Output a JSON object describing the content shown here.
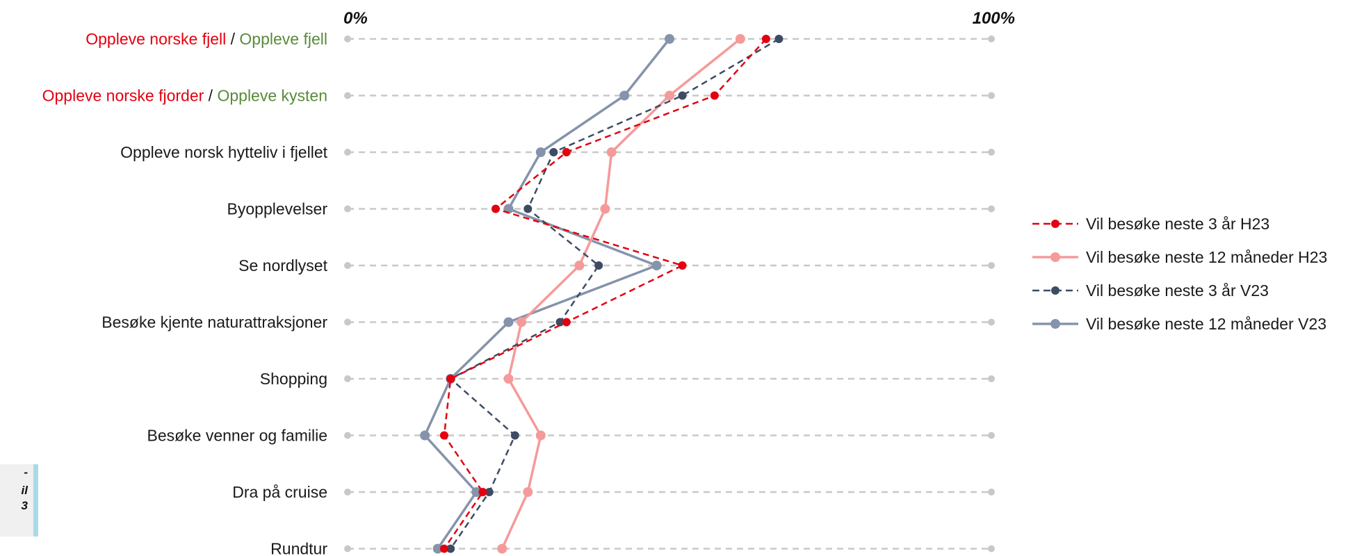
{
  "side_note": {
    "lines": [
      "-",
      "il",
      "3"
    ]
  },
  "chart_data": {
    "type": "line",
    "orientation": "horizontal",
    "x_range": [
      0,
      100
    ],
    "x_tick_labels": [
      "0%",
      "100%"
    ],
    "grid": "dashed-horizontal",
    "legend_position": "right",
    "categories": [
      [
        {
          "text": "Oppleve norske fjell",
          "color": "#e3000f"
        },
        {
          "text": " / ",
          "color": "#1a1a1a"
        },
        {
          "text": "Oppleve fjell",
          "color": "#5a8a3a"
        }
      ],
      [
        {
          "text": "Oppleve norske fjorder",
          "color": "#e3000f"
        },
        {
          "text": " / ",
          "color": "#1a1a1a"
        },
        {
          "text": "Oppleve kysten",
          "color": "#5a8a3a"
        }
      ],
      [
        {
          "text": "Oppleve norsk hytteliv i fjellet",
          "color": "#1a1a1a"
        }
      ],
      [
        {
          "text": "Byopplevelser",
          "color": "#1a1a1a"
        }
      ],
      [
        {
          "text": "Se nordlyset",
          "color": "#1a1a1a"
        }
      ],
      [
        {
          "text": "Besøke kjente naturattraksjoner",
          "color": "#1a1a1a"
        }
      ],
      [
        {
          "text": "Shopping",
          "color": "#1a1a1a"
        }
      ],
      [
        {
          "text": "Besøke venner og familie",
          "color": "#1a1a1a"
        }
      ],
      [
        {
          "text": "Dra på cruise",
          "color": "#1a1a1a"
        }
      ],
      [
        {
          "text": "Rundtur",
          "color": "#1a1a1a"
        }
      ]
    ],
    "series": [
      {
        "name": "Vil besøke neste 12 måneder V23",
        "color": "#8593ab",
        "style": "solid",
        "values": [
          50,
          43,
          30,
          25,
          48,
          25,
          16,
          12,
          20,
          14
        ]
      },
      {
        "name": "Vil besøke neste 12 måneder H23",
        "color": "#f59a9a",
        "style": "solid",
        "values": [
          61,
          50,
          41,
          40,
          36,
          27,
          25,
          30,
          28,
          24
        ]
      },
      {
        "name": "Vil besøke neste 3 år V23",
        "color": "#3d4b63",
        "style": "dashed",
        "values": [
          67,
          52,
          32,
          28,
          39,
          33,
          16,
          26,
          22,
          16
        ]
      },
      {
        "name": "Vil besøke neste 3 år H23",
        "color": "#e3000f",
        "style": "dashed",
        "values": [
          65,
          57,
          34,
          23,
          52,
          34,
          16,
          15,
          21,
          15
        ]
      }
    ],
    "legend_order": [
      3,
      1,
      2,
      0
    ]
  }
}
